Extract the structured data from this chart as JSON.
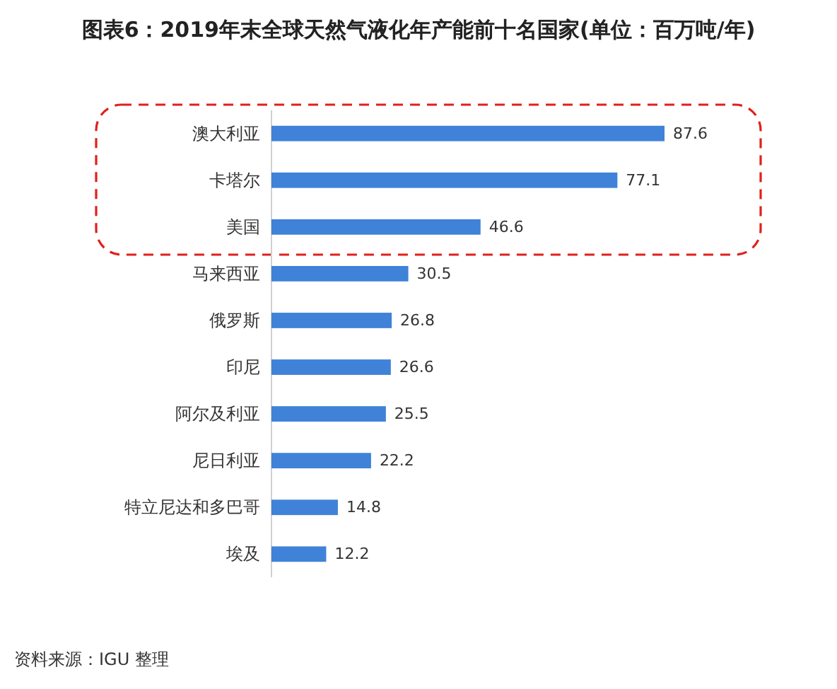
{
  "chart_data": {
    "type": "bar",
    "orientation": "horizontal",
    "title": "图表6：2019年末全球天然气液化年产能前十名国家(单位：百万吨/年)",
    "categories": [
      "澳大利亚",
      "卡塔尔",
      "美国",
      "马来西亚",
      "俄罗斯",
      "印尼",
      "阿尔及利亚",
      "尼日利亚",
      "特立尼达和多巴哥",
      "埃及"
    ],
    "values": [
      87.6,
      77.1,
      46.6,
      30.5,
      26.8,
      26.6,
      25.5,
      22.2,
      14.8,
      12.2
    ],
    "color": "#3f82d8",
    "data_labels": true,
    "annotations": [
      "资料来源：IGU 整理"
    ]
  }
}
